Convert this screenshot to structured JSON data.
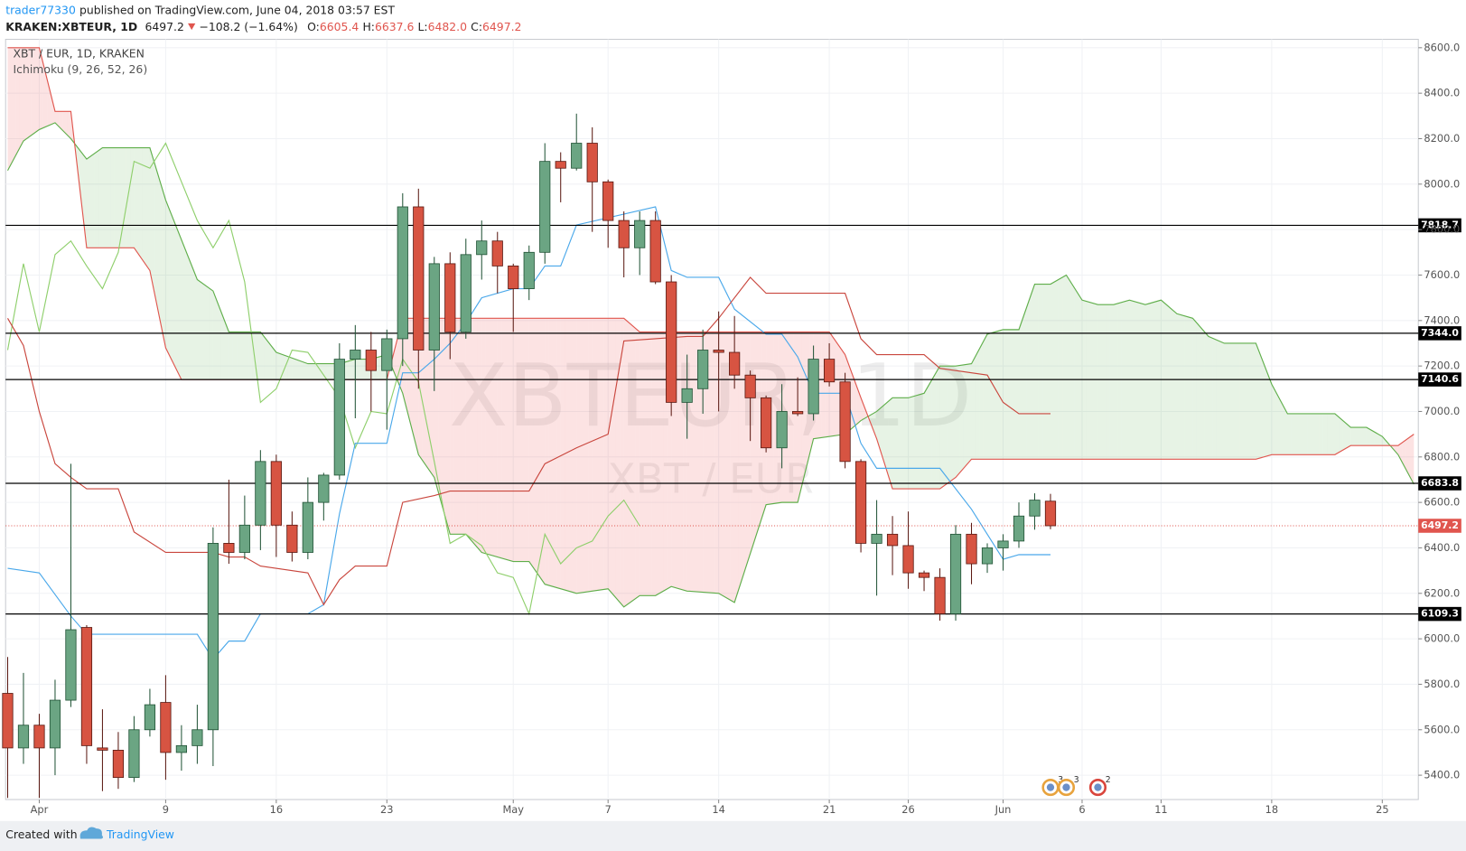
{
  "header": {
    "user": "trader77330",
    "published": "published on TradingView.com, June 04, 2018 03:57 EST",
    "symbol": "KRAKEN:XBTEUR, 1D",
    "change": "−108.2 (−1.64%)",
    "ohlc": [
      {
        "key": "O:",
        "value": "6605.4"
      },
      {
        "key": "H:",
        "value": "6637.6"
      },
      {
        "key": "L:",
        "value": "6482.0"
      },
      {
        "key": "C:",
        "value": "6497.2"
      }
    ]
  },
  "chart_data": {
    "type": "candlestick",
    "title": "XBT / EUR, 1D, KRAKEN",
    "indicator": "Ichimoku (9, 26, 52, 26)",
    "watermark": "XBTEUR, 1D",
    "watermark_sub": "XBT / EUR",
    "x": [
      -2,
      -1,
      0,
      1,
      2,
      3,
      4,
      5,
      6,
      7,
      8,
      9,
      10,
      11,
      12,
      13,
      14,
      15,
      16,
      17,
      18,
      19,
      20,
      21,
      22,
      23,
      24,
      25,
      26,
      27,
      28,
      29,
      30,
      31,
      32,
      33,
      34,
      35,
      36,
      37,
      38,
      39,
      40,
      41,
      42,
      43,
      44,
      45,
      46,
      47,
      48,
      49,
      50,
      51,
      52,
      53,
      54,
      55,
      56,
      57,
      58,
      59,
      60,
      61,
      62,
      63,
      64
    ],
    "open": [
      5760,
      5520,
      5620,
      5520,
      5730,
      6050,
      5520,
      5510,
      5390,
      5600,
      5720,
      5500,
      5530,
      5600,
      6420,
      6380,
      6500,
      6780,
      6500,
      6380,
      6600,
      6720,
      7230,
      7270,
      7180,
      7320,
      7900,
      7270,
      7650,
      7350,
      7690,
      7750,
      7640,
      7540,
      7700,
      8100,
      8070,
      8180,
      8010,
      7840,
      7720,
      7840,
      7570,
      7040,
      7100,
      7270,
      7260,
      7160,
      7060,
      6840,
      7000,
      6990,
      7230,
      7130,
      6780,
      6420,
      6460,
      6410,
      6290,
      6270,
      6110,
      6460,
      6330,
      6400,
      6430,
      6540,
      6605.4
    ],
    "high": [
      5920,
      5850,
      5670,
      5820,
      6770,
      6060,
      5690,
      5590,
      5660,
      5780,
      5840,
      5620,
      5710,
      6490,
      6700,
      6630,
      6830,
      6810,
      6560,
      6710,
      6730,
      7300,
      7380,
      7350,
      7360,
      7960,
      7980,
      7680,
      7700,
      7760,
      7840,
      7790,
      7650,
      7730,
      8180,
      8140,
      8310,
      8250,
      8020,
      7880,
      7880,
      7880,
      7600,
      7250,
      7360,
      7440,
      7420,
      7180,
      7070,
      7120,
      7150,
      7290,
      7300,
      7170,
      6790,
      6610,
      6540,
      6560,
      6300,
      6310,
      6500,
      6510,
      6420,
      6460,
      6600,
      6640,
      6637.6
    ],
    "low": [
      5300,
      5450,
      5300,
      5400,
      5700,
      5450,
      5330,
      5340,
      5370,
      5570,
      5380,
      5420,
      5450,
      5440,
      6330,
      6350,
      6390,
      6360,
      6340,
      6350,
      6520,
      6700,
      6970,
      7000,
      6920,
      7200,
      7100,
      7090,
      7230,
      7320,
      7580,
      7520,
      7350,
      7490,
      7650,
      7920,
      8060,
      7790,
      7720,
      7590,
      7600,
      7560,
      6980,
      6880,
      6990,
      7000,
      7100,
      6870,
      6820,
      6750,
      6980,
      6960,
      7110,
      6750,
      6380,
      6190,
      6280,
      6220,
      6210,
      6080,
      6080,
      6240,
      6290,
      6300,
      6400,
      6480,
      6482
    ],
    "close": [
      5520,
      5620,
      5520,
      5730,
      6040,
      5530,
      5510,
      5390,
      5600,
      5710,
      5500,
      5530,
      5600,
      6420,
      6380,
      6500,
      6780,
      6500,
      6380,
      6600,
      6720,
      7230,
      7270,
      7180,
      7320,
      7900,
      7270,
      7650,
      7350,
      7690,
      7750,
      7640,
      7540,
      7700,
      8100,
      8070,
      8180,
      8010,
      7840,
      7720,
      7840,
      7570,
      7040,
      7100,
      7270,
      7260,
      7160,
      7060,
      6840,
      7000,
      6990,
      7230,
      7130,
      6780,
      6420,
      6460,
      6410,
      6290,
      6270,
      6110,
      6460,
      6330,
      6400,
      6430,
      6540,
      6610,
      6497.2
    ],
    "up_color": "#6ba583",
    "up_border": "#225437",
    "down_color": "#d75442",
    "down_border": "#5b1a13",
    "overlays": {
      "span_a": {
        "color": "#5fae4a",
        "x": [
          -2,
          -1,
          0,
          1,
          2,
          3,
          4,
          7,
          8,
          10,
          11,
          12,
          14,
          15,
          17,
          19,
          20,
          21,
          22,
          23,
          24,
          25,
          26,
          27,
          28,
          30,
          31,
          32,
          34,
          36,
          37,
          38,
          39,
          40,
          41,
          43,
          44,
          46,
          47,
          48,
          49,
          50,
          51,
          52,
          53,
          54,
          55,
          56,
          57,
          58,
          59,
          60,
          61,
          62,
          63,
          64,
          65,
          66,
          67,
          68,
          69,
          70,
          71,
          72,
          73,
          74,
          75,
          77,
          78,
          79,
          82,
          83,
          84,
          85,
          86,
          87
        ],
        "values": [
          8060,
          8190,
          8240,
          8270,
          8200,
          8110,
          8160,
          8160,
          7930,
          7580,
          7530,
          7350,
          7350,
          7260,
          7210,
          7210,
          7230,
          7230,
          7250,
          7080,
          6810,
          6710,
          6460,
          6460,
          6380,
          6340,
          6340,
          6240,
          6200,
          6220,
          6140,
          6190,
          6190,
          6230,
          6210,
          6200,
          6160,
          6590,
          6600,
          6600,
          6880,
          6890,
          6900,
          6960,
          7000,
          7060,
          7060,
          7080,
          7200,
          7200,
          7210,
          7340,
          7360,
          7360,
          7560,
          7560,
          7600,
          7490,
          7470,
          7470,
          7490,
          7470,
          7490,
          7430,
          7410,
          7330,
          7300,
          7300,
          7120,
          6990,
          6990,
          6930,
          6930,
          6890,
          6810,
          6680
        ]
      },
      "span_b": {
        "color": "#e0564e",
        "x": [
          -2,
          0,
          1,
          2,
          3,
          6,
          7,
          8,
          9,
          22,
          23,
          24,
          37,
          38,
          50,
          51,
          52,
          53,
          54,
          57,
          58,
          59,
          77,
          78,
          82,
          83,
          86,
          87
        ],
        "values": [
          8600,
          8600,
          8320,
          8320,
          7720,
          7720,
          7620,
          7280,
          7140,
          7140,
          7410,
          7410,
          7410,
          7350,
          7350,
          7250,
          7060,
          6880,
          6660,
          6660,
          6710,
          6790,
          6790,
          6810,
          6810,
          6850,
          6850,
          6900
        ]
      },
      "lagging": {
        "color": "#8fcf6c",
        "x": [
          -2,
          -1,
          0,
          1,
          2,
          3,
          4,
          5,
          6,
          7,
          8,
          9,
          10,
          11,
          12,
          13,
          14,
          15,
          16,
          17,
          18,
          19,
          20,
          21,
          22,
          23,
          24,
          25,
          26,
          27,
          28,
          29,
          30,
          31,
          32,
          33,
          34,
          35,
          36,
          37,
          38
        ],
        "values": [
          7270,
          7650,
          7350,
          7690,
          7750,
          7640,
          7540,
          7700,
          8100,
          8070,
          8180,
          8010,
          7840,
          7720,
          7840,
          7570,
          7040,
          7100,
          7270,
          7260,
          7160,
          7060,
          6840,
          7000,
          6990,
          7230,
          7130,
          6780,
          6420,
          6460,
          6410,
          6290,
          6270,
          6110,
          6460,
          6330,
          6400,
          6430,
          6540,
          6610,
          6497.2
        ]
      },
      "tenkan": {
        "color": "#4aa8ea",
        "x": [
          -2,
          0,
          2,
          3,
          10,
          11,
          12,
          13,
          14,
          17,
          18,
          19,
          20,
          22,
          23,
          24,
          25,
          26,
          27,
          28,
          30,
          31,
          32,
          33,
          34,
          39,
          40,
          41,
          43,
          44,
          46,
          47,
          48,
          49,
          51,
          52,
          53,
          57,
          59,
          61,
          62,
          64
        ],
        "values": [
          6310,
          6290,
          6100,
          6020,
          6020,
          5910,
          5990,
          5990,
          6110,
          6110,
          6150,
          6550,
          6860,
          6860,
          7170,
          7170,
          7230,
          7300,
          7390,
          7500,
          7540,
          7540,
          7640,
          7640,
          7820,
          7900,
          7620,
          7590,
          7590,
          7450,
          7340,
          7340,
          7240,
          7080,
          7080,
          6860,
          6750,
          6750,
          6570,
          6350,
          6370,
          6370
        ]
      },
      "kijun": {
        "color": "#c9463d",
        "x": [
          -2,
          -1,
          0,
          1,
          2,
          3,
          5,
          6,
          8,
          11,
          12,
          13,
          14,
          17,
          18,
          19,
          20,
          22,
          23,
          25,
          26,
          31,
          32,
          34,
          36,
          37,
          41,
          42,
          43,
          45,
          46,
          51,
          52,
          53,
          56,
          57,
          60,
          61,
          62,
          64
        ],
        "values": [
          7410,
          7290,
          7000,
          6770,
          6710,
          6660,
          6660,
          6470,
          6380,
          6380,
          6360,
          6360,
          6320,
          6290,
          6150,
          6260,
          6320,
          6320,
          6600,
          6630,
          6650,
          6650,
          6770,
          6840,
          6900,
          7310,
          7330,
          7330,
          7410,
          7590,
          7520,
          7520,
          7320,
          7250,
          7250,
          7190,
          7160,
          7040,
          6990,
          6990
        ]
      }
    },
    "cloud_up_color": "rgba(96,176,80,0.15)",
    "cloud_down_color": "rgba(240,90,90,0.17)",
    "xlim": [
      -2.13,
      87.28
    ],
    "xticks": [
      {
        "value": 0,
        "label": "Apr"
      },
      {
        "value": 8,
        "label": "9"
      },
      {
        "value": 15,
        "label": "16"
      },
      {
        "value": 22,
        "label": "23"
      },
      {
        "value": 30,
        "label": "May"
      },
      {
        "value": 36,
        "label": "7"
      },
      {
        "value": 43,
        "label": "14"
      },
      {
        "value": 50,
        "label": "21"
      },
      {
        "value": 55,
        "label": "26"
      },
      {
        "value": 61,
        "label": "Jun"
      },
      {
        "value": 66,
        "label": "6"
      },
      {
        "value": 71,
        "label": "11"
      },
      {
        "value": 78,
        "label": "18"
      },
      {
        "value": 85,
        "label": "25"
      }
    ],
    "ylim": [
      5293,
      8637
    ],
    "yticks": [
      {
        "value": 5400,
        "label": "5400.0"
      },
      {
        "value": 5600,
        "label": "5600.0"
      },
      {
        "value": 5800,
        "label": "5800.0"
      },
      {
        "value": 6000,
        "label": "6000.0"
      },
      {
        "value": 6200,
        "label": "6200.0"
      },
      {
        "value": 6400,
        "label": "6400.0"
      },
      {
        "value": 6600,
        "label": "6600.0"
      },
      {
        "value": 6800,
        "label": "6800.0"
      },
      {
        "value": 7000,
        "label": "7000.0"
      },
      {
        "value": 7200,
        "label": "7200.0"
      },
      {
        "value": 7400,
        "label": "7400.0"
      },
      {
        "value": 7600,
        "label": "7600.0"
      },
      {
        "value": 7800,
        "label": "7800.0"
      },
      {
        "value": 8000,
        "label": "8000.0"
      },
      {
        "value": 8200,
        "label": "8200.0"
      },
      {
        "value": 8400,
        "label": "8400.0"
      },
      {
        "value": 8600,
        "label": "8600.0"
      }
    ],
    "grid": true,
    "levels": [
      7818.7,
      {
        "value": 7344,
        "label": "7344.0"
      },
      7140.6,
      6683.8,
      6109.3
    ],
    "level_color": "#000000",
    "last_color": "#e0554e",
    "events": [
      {
        "x": 64,
        "count": 3,
        "color": "#e8a33d"
      },
      {
        "x": 65,
        "count": 3,
        "color": "#e8a33d"
      },
      {
        "x": 67,
        "count": 2,
        "color": "#d9453c"
      }
    ]
  },
  "footer": {
    "created": "Created with",
    "brand": "TradingView"
  }
}
